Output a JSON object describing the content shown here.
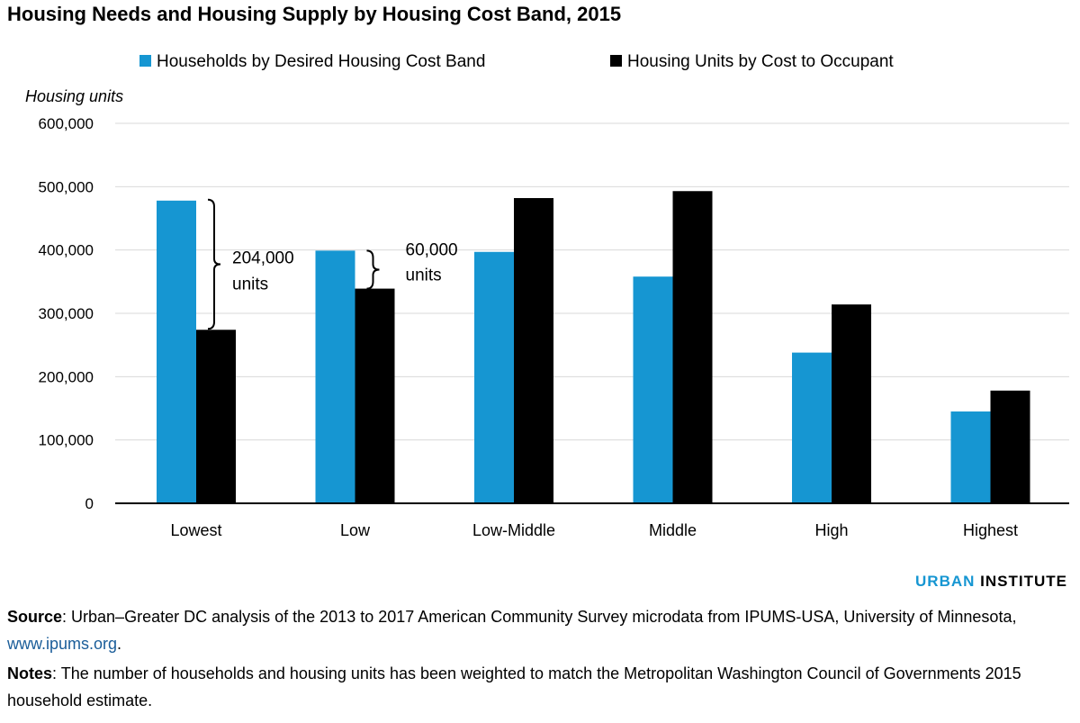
{
  "title": "Housing Needs and Housing Supply by Housing Cost Band, 2015",
  "chart_data": {
    "type": "bar",
    "title": "Housing Needs and Housing Supply by Housing Cost Band, 2015",
    "ylabel": "Housing units",
    "xlabel": "",
    "ylim": [
      0,
      600000
    ],
    "yticks": [
      0,
      100000,
      200000,
      300000,
      400000,
      500000,
      600000
    ],
    "ytick_labels": [
      "0",
      "100,000",
      "200,000",
      "300,000",
      "400,000",
      "500,000",
      "600,000"
    ],
    "categories": [
      "Lowest",
      "Low",
      "Low-Middle",
      "Middle",
      "High",
      "Highest"
    ],
    "series": [
      {
        "name": "Households by Desired Housing Cost Band",
        "color": "#1696d2",
        "values": [
          478000,
          399000,
          397000,
          358000,
          238000,
          145000
        ]
      },
      {
        "name": "Housing Units by Cost to Occupant",
        "color": "#000000",
        "values": [
          274000,
          339000,
          482000,
          493000,
          314000,
          178000
        ]
      }
    ],
    "grid": true,
    "legend_position": "top",
    "annotations": [
      {
        "category": "Lowest",
        "line1": "204,000",
        "line2": "units"
      },
      {
        "category": "Low",
        "line1": "60,000",
        "line2": "units"
      }
    ]
  },
  "branding": {
    "part1": "URBAN",
    "part2": "INSTITUTE"
  },
  "source": {
    "label": "Source",
    "text": ": Urban–Greater DC analysis of the 2013 to 2017 American Community Survey microdata from IPUMS-USA, University of Minnesota, ",
    "link": "www.ipums.org",
    "end": "."
  },
  "notes": {
    "label": "Notes",
    "text": ": The number of households and housing units has been weighted to match the Metropolitan Washington Council of Governments 2015 household estimate."
  }
}
